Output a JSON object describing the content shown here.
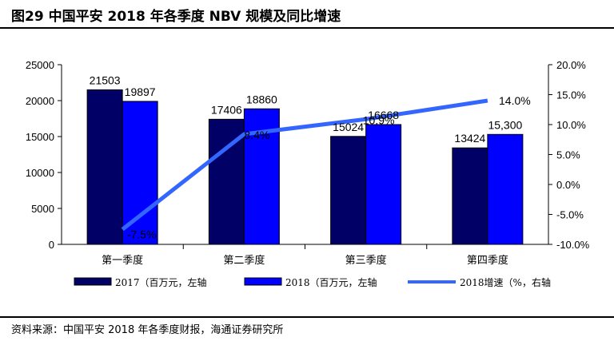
{
  "title": "图29 中国平安 2018 年各季度 NBV 规模及同比增速",
  "source": "资料来源：中国平安 2018 年各季度财报，海通证券研究所",
  "chart_data": {
    "type": "bar",
    "categories": [
      "第一季度",
      "第二季度",
      "第三季度",
      "第四季度"
    ],
    "series": [
      {
        "name": "2017（百万元，左轴",
        "type": "bar",
        "axis": "left",
        "color": "#000066",
        "values": [
          21503,
          17406,
          15024,
          13424
        ],
        "labels": [
          "21503",
          "17406",
          "15024",
          "13424"
        ]
      },
      {
        "name": "2018（百万元，左轴",
        "type": "bar",
        "axis": "left",
        "color": "#0000ff",
        "values": [
          19897,
          18860,
          16668,
          15300
        ],
        "labels": [
          "19897",
          "18860",
          "16668",
          "15,300"
        ]
      },
      {
        "name": "2018增速（%，右轴",
        "type": "line",
        "axis": "right",
        "color": "#3366ff",
        "values": [
          -7.5,
          8.4,
          10.9,
          14.0
        ],
        "labels": [
          "-7.5%",
          "8.4%",
          "10.9%",
          "14.0%"
        ]
      }
    ],
    "y_left": {
      "min": 0,
      "max": 25000,
      "ticks": [
        "0",
        "5000",
        "10000",
        "15000",
        "20000",
        "25000"
      ]
    },
    "y_right": {
      "min": -10,
      "max": 20,
      "ticks": [
        "-10.0%",
        "-5.0%",
        "0.0%",
        "5.0%",
        "10.0%",
        "15.0%",
        "20.0%"
      ]
    },
    "grid": false,
    "legend_position": "bottom"
  }
}
